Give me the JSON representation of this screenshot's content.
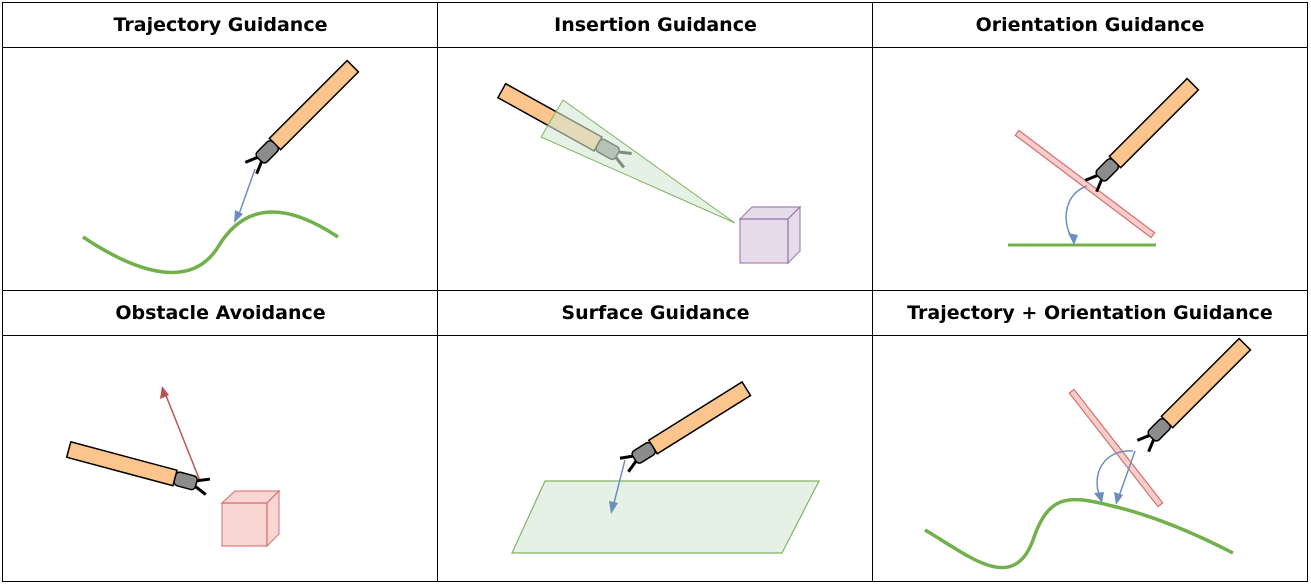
{
  "panels": [
    {
      "title": "Trajectory Guidance"
    },
    {
      "title": "Insertion Guidance"
    },
    {
      "title": "Orientation Guidance"
    },
    {
      "title": "Obstacle Avoidance"
    },
    {
      "title": "Surface Guidance"
    },
    {
      "title": "Trajectory + Orientation Guidance"
    }
  ],
  "colors": {
    "tool_shaft": "#fcc58e",
    "tool_head": "#8c8c8c",
    "trajectory": "#72b04b",
    "guidance_arrow": "#6c8ebf",
    "avoid_arrow": "#b85450",
    "orientation_plane": "#f8cecc",
    "cone": "#d5e8d4",
    "target_cube": "#e1d5e7",
    "obstacle_cube": "#f8cecc",
    "surface": "#d5e8d4"
  }
}
